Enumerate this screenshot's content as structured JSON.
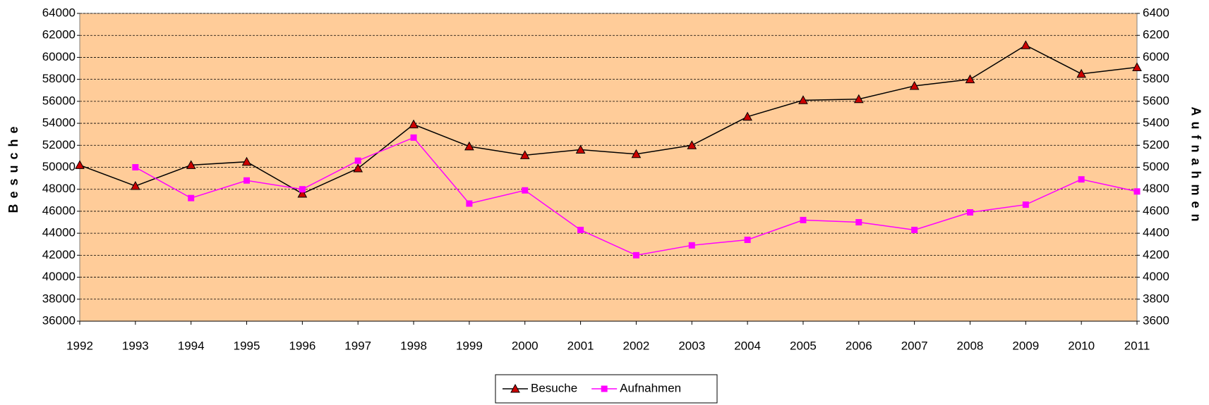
{
  "chart_data": {
    "type": "line",
    "x": [
      1992,
      1993,
      1994,
      1995,
      1996,
      1997,
      1998,
      1999,
      2000,
      2001,
      2002,
      2003,
      2004,
      2005,
      2006,
      2007,
      2008,
      2009,
      2010,
      2011
    ],
    "xlim": [
      1992,
      2011
    ],
    "y_label": "Besuche",
    "y2_label": "Aufnahmen",
    "ylim": [
      36000,
      64000
    ],
    "yticks": [
      36000,
      38000,
      40000,
      42000,
      44000,
      46000,
      48000,
      50000,
      52000,
      54000,
      56000,
      58000,
      60000,
      62000,
      64000
    ],
    "y2lim": [
      3600,
      6400
    ],
    "y2ticks": [
      3600,
      3800,
      4000,
      4200,
      4400,
      4600,
      4800,
      5000,
      5200,
      5400,
      5600,
      5800,
      6000,
      6200,
      6400
    ],
    "grid": true,
    "background": "#FFCC99",
    "legend": "bottom",
    "series": [
      {
        "name": "Besuche",
        "color": "#000000",
        "marker": "triangle",
        "marker_color": "#CC0000",
        "values": [
          50200,
          48300,
          50200,
          50500,
          47600,
          49900,
          53900,
          51900,
          51100,
          51600,
          51200,
          52000,
          54600,
          56100,
          56200,
          57400,
          58000,
          61100,
          58500,
          59100
        ]
      },
      {
        "name": "Aufnahmen",
        "color": "#FF00FF",
        "marker": "square",
        "marker_color": "#FF00FF",
        "axis": "y2",
        "values": [
          null,
          5000,
          4720,
          4880,
          4800,
          5060,
          5270,
          4670,
          4790,
          4430,
          4200,
          4290,
          4340,
          4520,
          4500,
          4430,
          4590,
          4660,
          4890,
          4780
        ]
      }
    ]
  }
}
